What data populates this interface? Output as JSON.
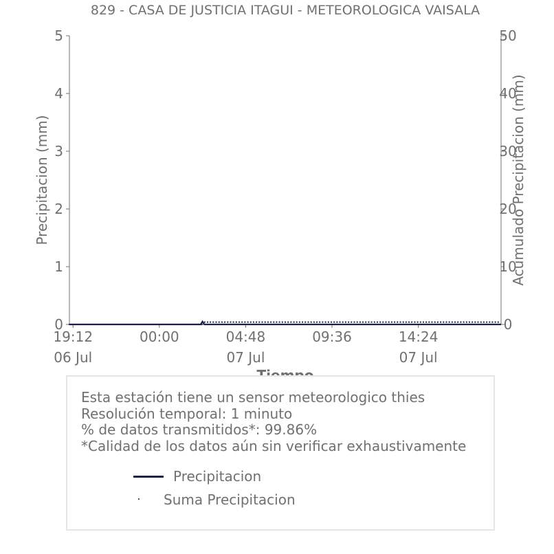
{
  "chart_data": {
    "type": "line",
    "title": "829 - CASA DE JUSTICIA ITAGUI - METEOROLOGICA VAISALA",
    "xlabel": "Tiempo",
    "ylabel": "Precipitacion (mm)",
    "y2label": "Acumulado Precipitacion (mm)",
    "ylim": [
      0,
      5
    ],
    "y2lim": [
      0,
      50
    ],
    "yticks": [
      "0",
      "1",
      "2",
      "3",
      "4",
      "5"
    ],
    "y2ticks": [
      "0",
      "10",
      "20",
      "30",
      "40",
      "50"
    ],
    "xlim": [
      "06 Jul 19:00",
      "07 Jul 19:00"
    ],
    "xticks": [
      {
        "time": "19:12",
        "date": "06 Jul",
        "hours": 0.2
      },
      {
        "time": "00:00",
        "date": "",
        "hours": 5.0
      },
      {
        "time": "04:48",
        "date": "07 Jul",
        "hours": 9.8
      },
      {
        "time": "09:36",
        "date": "",
        "hours": 14.6
      },
      {
        "time": "14:24",
        "date": "07 Jul",
        "hours": 19.4
      }
    ],
    "series": [
      {
        "name": "Precipitacion",
        "axis": "left",
        "style": "line",
        "color": "#1d1f3f",
        "x_hours": [
          0,
          7.3,
          7.4,
          7.5,
          7.7,
          24
        ],
        "values": [
          0,
          0,
          0.05,
          0,
          0,
          0
        ]
      },
      {
        "name": "Suma Precipitacion",
        "axis": "right",
        "style": "dots",
        "color": "#1d1f3f",
        "x_hours": [
          0,
          7.35,
          7.45,
          24
        ],
        "values": [
          0,
          0,
          0.4,
          0.4
        ]
      }
    ]
  },
  "info": {
    "line1": "Esta estación tiene un sensor meteorologico thies",
    "line2": "Resolución temporal: 1 minuto",
    "line3": "% de datos transmitidos*: 99.86%",
    "line4": "*Calidad de los datos aún sin verificar exhaustivamente"
  },
  "legend": {
    "item1": "Precipitacion",
    "item2": "Suma Precipitacion"
  },
  "colors": {
    "text": "#707070",
    "series": "#1d1f3f",
    "box_border": "#e6e6e6"
  }
}
